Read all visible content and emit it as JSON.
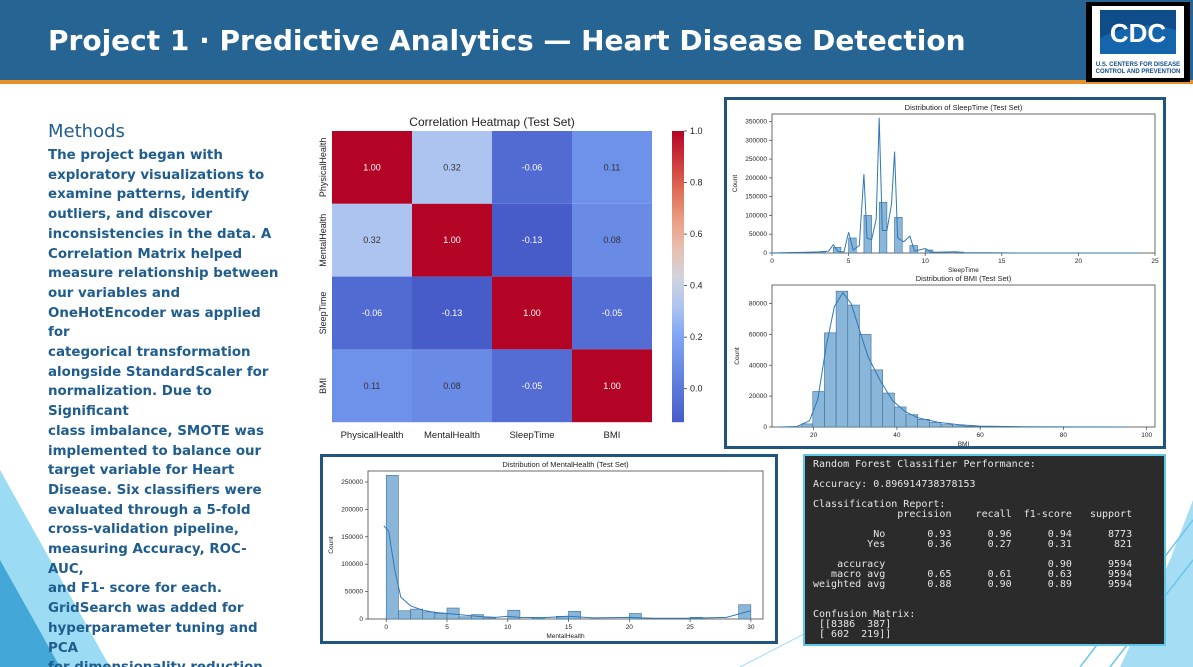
{
  "header": {
    "title": "Project 1  ·  Predictive Analytics — Heart Disease Detection",
    "logo": {
      "mark": "CDC",
      "line1": "U.S. CENTERS FOR DISEASE",
      "line2": "CONTROL AND PREVENTION"
    }
  },
  "methods": {
    "title": "Methods",
    "lines": [
      "The project began with",
      "exploratory visualizations to",
      "examine patterns, identify",
      "outliers, and discover",
      "inconsistencies in the data. A",
      "Correlation Matrix helped",
      "measure relationship between",
      "our variables and",
      "OneHotEncoder was applied for",
      "categorical transformation",
      "alongside StandardScaler for",
      "normalization. Due to Significant",
      "class imbalance, SMOTE was",
      "implemented to balance our",
      "target variable for Heart",
      "Disease. Six classifiers were",
      "evaluated through a 5-fold",
      "cross-validation pipeline,",
      "measuring Accuracy, ROC-AUC,",
      "and F1- score for each.",
      "GridSearch was added for",
      "hyperparameter tuning and PCA",
      "for dimensionality reduction."
    ]
  },
  "colors": {
    "header": "#266593",
    "accent": "#e8902a",
    "text": "#1f5d8e",
    "bar": "#8ab7d9",
    "line": "#2f78b7"
  },
  "chart_data": [
    {
      "type": "heatmap",
      "title": "Correlation Heatmap (Test Set)",
      "labels": [
        "PhysicalHealth",
        "MentalHealth",
        "SleepTime",
        "BMI"
      ],
      "matrix": [
        [
          1.0,
          0.32,
          -0.06,
          0.11
        ],
        [
          0.32,
          1.0,
          -0.13,
          0.08
        ],
        [
          -0.06,
          -0.13,
          1.0,
          -0.05
        ],
        [
          0.11,
          0.08,
          -0.05,
          1.0
        ]
      ],
      "value_labels": [
        [
          "1.00",
          "0.32",
          "-0.06",
          "0.11"
        ],
        [
          "0.32",
          "1.00",
          "-0.13",
          "0.08"
        ],
        [
          "-0.06",
          "-0.13",
          "1.00",
          "-0.05"
        ],
        [
          "0.11",
          "0.08",
          "-0.05",
          "1.00"
        ]
      ],
      "colorbar_ticks": [
        "1.0",
        "0.8",
        "0.6",
        "0.4",
        "0.2",
        "0.0"
      ],
      "colorbar_values": [
        1.0,
        0.8,
        0.6,
        0.4,
        0.2,
        0.0
      ],
      "colormap": "coolwarm"
    },
    {
      "type": "bar",
      "title": "Distribution of SleepTime (Test Set)",
      "xlabel": "SleepTime",
      "ylabel": "Count",
      "xlim": [
        0,
        25
      ],
      "ylim": [
        0,
        370000
      ],
      "xticks": [
        0,
        5,
        10,
        15,
        20,
        25
      ],
      "yticks": [
        0,
        50000,
        100000,
        150000,
        200000,
        250000,
        300000,
        350000
      ],
      "xtick_labels": [
        "0",
        "5",
        "10",
        "15",
        "20",
        "25"
      ],
      "ytick_labels": [
        "0",
        "50000",
        "100000",
        "150000",
        "200000",
        "250000",
        "300000",
        "350000"
      ],
      "bins": [
        [
          1,
          1.5,
          1000
        ],
        [
          2,
          2.5,
          1500
        ],
        [
          3,
          3.5,
          3000
        ],
        [
          4,
          4.5,
          15000
        ],
        [
          5,
          5.5,
          40000
        ],
        [
          6,
          6.5,
          100000
        ],
        [
          7,
          7.5,
          135000
        ],
        [
          8,
          8.5,
          95000
        ],
        [
          9,
          9.5,
          20000
        ],
        [
          10,
          10.5,
          8000
        ],
        [
          11,
          11.5,
          2000
        ],
        [
          12,
          12.5,
          2500
        ],
        [
          14,
          14.5,
          500
        ]
      ],
      "kde": [
        [
          0,
          0
        ],
        [
          1,
          1000
        ],
        [
          2,
          1500
        ],
        [
          3,
          3000
        ],
        [
          3.7,
          5000
        ],
        [
          4,
          22000
        ],
        [
          4.3,
          4000
        ],
        [
          4.7,
          3000
        ],
        [
          5,
          55000
        ],
        [
          5.3,
          8000
        ],
        [
          5.7,
          20000
        ],
        [
          6,
          210000
        ],
        [
          6.2,
          40000
        ],
        [
          6.5,
          35000
        ],
        [
          6.8,
          90000
        ],
        [
          7,
          360000
        ],
        [
          7.2,
          60000
        ],
        [
          7.5,
          60000
        ],
        [
          7.8,
          130000
        ],
        [
          8,
          270000
        ],
        [
          8.2,
          40000
        ],
        [
          8.6,
          30000
        ],
        [
          9,
          45000
        ],
        [
          9.3,
          5000
        ],
        [
          10,
          12000
        ],
        [
          10.4,
          2000
        ],
        [
          11,
          2500
        ],
        [
          12,
          3500
        ],
        [
          12.5,
          500
        ],
        [
          14,
          800
        ],
        [
          16,
          0
        ],
        [
          24,
          0
        ]
      ]
    },
    {
      "type": "bar",
      "title": "Distribution of BMI (Test Set)",
      "xlabel": "BMI",
      "ylabel": "Count",
      "xlim": [
        10,
        102
      ],
      "ylim": [
        0,
        92000
      ],
      "xticks": [
        20,
        40,
        60,
        80,
        100
      ],
      "yticks": [
        0,
        20000,
        40000,
        60000,
        80000
      ],
      "xtick_labels": [
        "20",
        "40",
        "60",
        "80",
        "100"
      ],
      "ytick_labels": [
        "0",
        "20000",
        "40000",
        "60000",
        "80000"
      ],
      "bins": [
        [
          17,
          19.8,
          2000
        ],
        [
          19.8,
          22.6,
          23000
        ],
        [
          22.6,
          25.4,
          61000
        ],
        [
          25.4,
          28.2,
          88000
        ],
        [
          28.2,
          31,
          79000
        ],
        [
          31,
          33.8,
          60000
        ],
        [
          33.8,
          36.6,
          37000
        ],
        [
          36.6,
          39.4,
          22000
        ],
        [
          39.4,
          42.2,
          13000
        ],
        [
          42.2,
          45,
          8000
        ],
        [
          45,
          47.8,
          5000
        ],
        [
          47.8,
          50.6,
          3000
        ],
        [
          50.6,
          53.4,
          1500
        ],
        [
          53.4,
          56.2,
          800
        ],
        [
          56.2,
          59,
          400
        ],
        [
          59,
          61.8,
          200
        ]
      ],
      "kde": [
        [
          12,
          0
        ],
        [
          16,
          300
        ],
        [
          19,
          4000
        ],
        [
          21,
          18000
        ],
        [
          23,
          52000
        ],
        [
          25,
          78000
        ],
        [
          27,
          87000
        ],
        [
          29,
          80000
        ],
        [
          31,
          63000
        ],
        [
          33,
          46000
        ],
        [
          36,
          30000
        ],
        [
          39,
          17000
        ],
        [
          42,
          10000
        ],
        [
          45,
          6000
        ],
        [
          50,
          3000
        ],
        [
          55,
          1500
        ],
        [
          60,
          600
        ],
        [
          70,
          200
        ],
        [
          80,
          80
        ],
        [
          95,
          0
        ]
      ]
    },
    {
      "type": "bar",
      "title": "Distribution of MentalHealth (Test Set)",
      "xlabel": "MentalHealth",
      "ylabel": "Count",
      "xlim": [
        -1.5,
        31
      ],
      "ylim": [
        0,
        270000
      ],
      "xticks": [
        0,
        5,
        10,
        15,
        20,
        25,
        30
      ],
      "yticks": [
        0,
        50000,
        100000,
        150000,
        200000,
        250000
      ],
      "xtick_labels": [
        "0",
        "5",
        "10",
        "15",
        "20",
        "25",
        "30"
      ],
      "ytick_labels": [
        "0",
        "50000",
        "100000",
        "150000",
        "200000",
        "250000"
      ],
      "bins": [
        [
          0,
          1,
          262000
        ],
        [
          1,
          2,
          15000
        ],
        [
          2,
          3,
          18000
        ],
        [
          3,
          4,
          13000
        ],
        [
          4,
          5,
          10000
        ],
        [
          5,
          6,
          20000
        ],
        [
          6,
          7,
          4000
        ],
        [
          7,
          8,
          8000
        ],
        [
          8,
          9,
          2000
        ],
        [
          10,
          11,
          16000
        ],
        [
          12,
          13,
          2000
        ],
        [
          14,
          15,
          5000
        ],
        [
          15,
          16,
          14000
        ],
        [
          20,
          21,
          10000
        ],
        [
          25,
          26,
          3000
        ],
        [
          29,
          30,
          26000
        ]
      ],
      "kde": [
        [
          -0.2,
          170000
        ],
        [
          0.2,
          160000
        ],
        [
          0.7,
          90000
        ],
        [
          1.2,
          40000
        ],
        [
          2,
          24000
        ],
        [
          3,
          16000
        ],
        [
          4,
          12000
        ],
        [
          5,
          10000
        ],
        [
          6,
          8000
        ],
        [
          7,
          6000
        ],
        [
          8,
          4000
        ],
        [
          9,
          3000
        ],
        [
          10,
          5000
        ],
        [
          11,
          3000
        ],
        [
          13,
          2500
        ],
        [
          15,
          5000
        ],
        [
          17,
          2000
        ],
        [
          20,
          3000
        ],
        [
          22,
          1500
        ],
        [
          25,
          1500
        ],
        [
          28,
          3000
        ],
        [
          29.5,
          12000
        ],
        [
          30,
          15000
        ]
      ]
    }
  ],
  "report": {
    "text": "Random Forest Classifier Performance:\n\nAccuracy: 0.896914738378153\n\nClassification Report:\n              precision    recall  f1-score   support\n\n          No       0.93      0.96      0.94      8773\n         Yes       0.36      0.27      0.31       821\n\n    accuracy                           0.90      9594\n   macro avg       0.65      0.61      0.63      9594\nweighted avg       0.88      0.90      0.89      9594\n\n\nConfusion Matrix:\n [[8386  387]\n [ 602  219]]"
  }
}
